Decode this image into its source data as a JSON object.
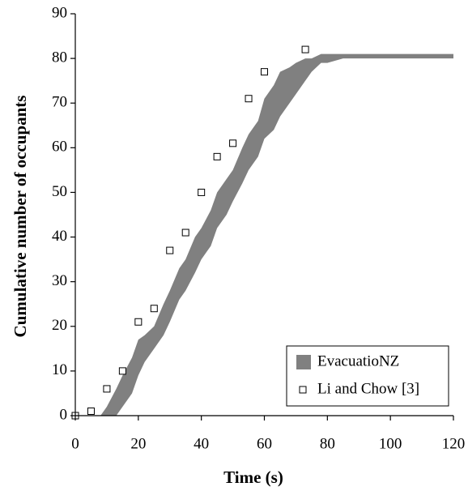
{
  "chart_data": {
    "type": "scatter",
    "xlabel": "Time (s)",
    "ylabel": "Cumulative number of occupants",
    "xlim": [
      0,
      120
    ],
    "xticks": [
      0,
      20,
      40,
      60,
      80,
      100,
      120
    ],
    "ylim": [
      0,
      90
    ],
    "yticks": [
      0,
      10,
      20,
      30,
      40,
      50,
      60,
      70,
      80,
      90
    ],
    "grid": false,
    "legend": "lower right",
    "series": [
      {
        "name": "EvacuatioNZ",
        "type": "band",
        "color": "#808080",
        "x": [
          8,
          10,
          13,
          15,
          18,
          20,
          22,
          25,
          28,
          30,
          33,
          35,
          38,
          40,
          43,
          45,
          48,
          50,
          53,
          55,
          58,
          60,
          63,
          65,
          68,
          70,
          73,
          75,
          78,
          80,
          85,
          90,
          100,
          110,
          120
        ],
        "upper": [
          0,
          2,
          6,
          9,
          13,
          17,
          18,
          20,
          25,
          28,
          33,
          35,
          40,
          42,
          46,
          50,
          53,
          55,
          60,
          63,
          66,
          71,
          74,
          77,
          78,
          79,
          80,
          80,
          81,
          81,
          81,
          81,
          81,
          81,
          81
        ],
        "lower": [
          0,
          0,
          0,
          2,
          5,
          9,
          12,
          15,
          18,
          21,
          26,
          28,
          32,
          35,
          38,
          42,
          45,
          48,
          52,
          55,
          58,
          62,
          64,
          67,
          70,
          72,
          75,
          77,
          79,
          79,
          80,
          80,
          80,
          80,
          80
        ]
      },
      {
        "name": "Li and Chow [3]",
        "type": "scatter",
        "color": "#ffffff",
        "x": [
          0,
          5,
          10,
          15,
          20,
          25,
          30,
          35,
          40,
          45,
          50,
          55,
          60,
          73
        ],
        "values": [
          0,
          1,
          6,
          10,
          21,
          24,
          37,
          41,
          50,
          58,
          61,
          71,
          77,
          82
        ]
      }
    ]
  }
}
